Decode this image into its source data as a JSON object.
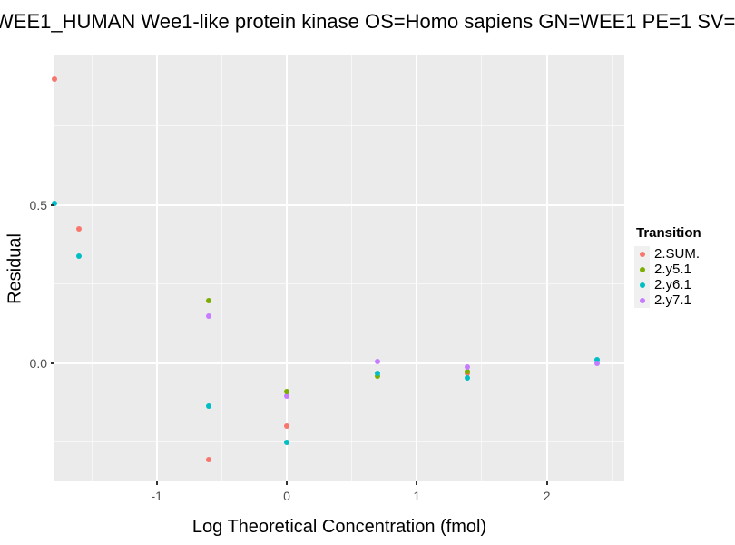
{
  "chart_data": {
    "type": "scatter",
    "title": "WEE1_HUMAN Wee1-like protein kinase OS=Homo sapiens GN=WEE1 PE=1 SV=",
    "xlabel": "Log Theoretical Concentration (fmol)",
    "ylabel": "Residual",
    "xlim": [
      -1.787,
      2.596
    ],
    "ylim": [
      -0.374,
      0.974
    ],
    "grid": true,
    "x_ticks": {
      "values": [
        -1,
        0,
        1,
        2
      ],
      "labels": [
        "-1",
        "0",
        "1",
        "2"
      ]
    },
    "x_minor_ticks": [
      -1.5,
      -0.5,
      0.5,
      1.5,
      2.5
    ],
    "y_ticks": {
      "values": [
        0.0,
        0.5
      ],
      "labels": [
        "0.0",
        "0.5"
      ]
    },
    "y_minor_ticks": [
      -0.25,
      0.25,
      0.75
    ],
    "legend": {
      "title": "Transition",
      "position": "right",
      "entries": [
        {
          "label": "2.SUM.",
          "color": "#F8766D"
        },
        {
          "label": "2.y5.1",
          "color": "#7CAE00"
        },
        {
          "label": "2.y6.1",
          "color": "#00BFC4"
        },
        {
          "label": "2.y7.1",
          "color": "#C77CFF"
        }
      ]
    },
    "series": [
      {
        "name": "2.SUM.",
        "color": "#F8766D"
      },
      {
        "name": "2.y5.1",
        "color": "#7CAE00"
      },
      {
        "name": "2.y6.1",
        "color": "#00BFC4"
      },
      {
        "name": "2.y7.1",
        "color": "#C77CFF"
      }
    ],
    "points": [
      {
        "series": "2.SUM.",
        "x": -1.787,
        "y": 0.9
      },
      {
        "series": "2.y6.1",
        "x": -1.785,
        "y": 0.505
      },
      {
        "series": "2.SUM.",
        "x": -1.6,
        "y": 0.425
      },
      {
        "series": "2.y6.1",
        "x": -1.6,
        "y": 0.34
      },
      {
        "series": "2.y5.1",
        "x": -0.6,
        "y": 0.198
      },
      {
        "series": "2.y7.1",
        "x": -0.6,
        "y": 0.149
      },
      {
        "series": "2.y6.1",
        "x": -0.6,
        "y": -0.135
      },
      {
        "series": "2.SUM.",
        "x": -0.6,
        "y": -0.305
      },
      {
        "series": "2.y7.1",
        "x": 0.0,
        "y": -0.103
      },
      {
        "series": "2.y5.1",
        "x": 0.0,
        "y": -0.089
      },
      {
        "series": "2.SUM.",
        "x": 0.0,
        "y": -0.2
      },
      {
        "series": "2.y6.1",
        "x": 0.0,
        "y": -0.25
      },
      {
        "series": "2.y5.1",
        "x": 0.7,
        "y": -0.04
      },
      {
        "series": "2.y6.1",
        "x": 0.7,
        "y": -0.031
      },
      {
        "series": "2.y7.1",
        "x": 0.7,
        "y": 0.005
      },
      {
        "series": "2.SUM.",
        "x": 1.39,
        "y": -0.032
      },
      {
        "series": "2.y5.1",
        "x": 1.39,
        "y": -0.026
      },
      {
        "series": "2.y7.1",
        "x": 1.39,
        "y": -0.011
      },
      {
        "series": "2.y6.1",
        "x": 1.39,
        "y": -0.047
      },
      {
        "series": "2.y6.1",
        "x": 2.39,
        "y": 0.012
      },
      {
        "series": "2.y7.1",
        "x": 2.39,
        "y": 0.001
      }
    ],
    "colors": {
      "panel_bg": "#EBEBEB",
      "grid_major": "#FFFFFF",
      "grid_minor": "#F5F5F5",
      "tick_mark": "#333333",
      "tick_label": "#4D4D4D",
      "title_text": "#000000"
    }
  }
}
